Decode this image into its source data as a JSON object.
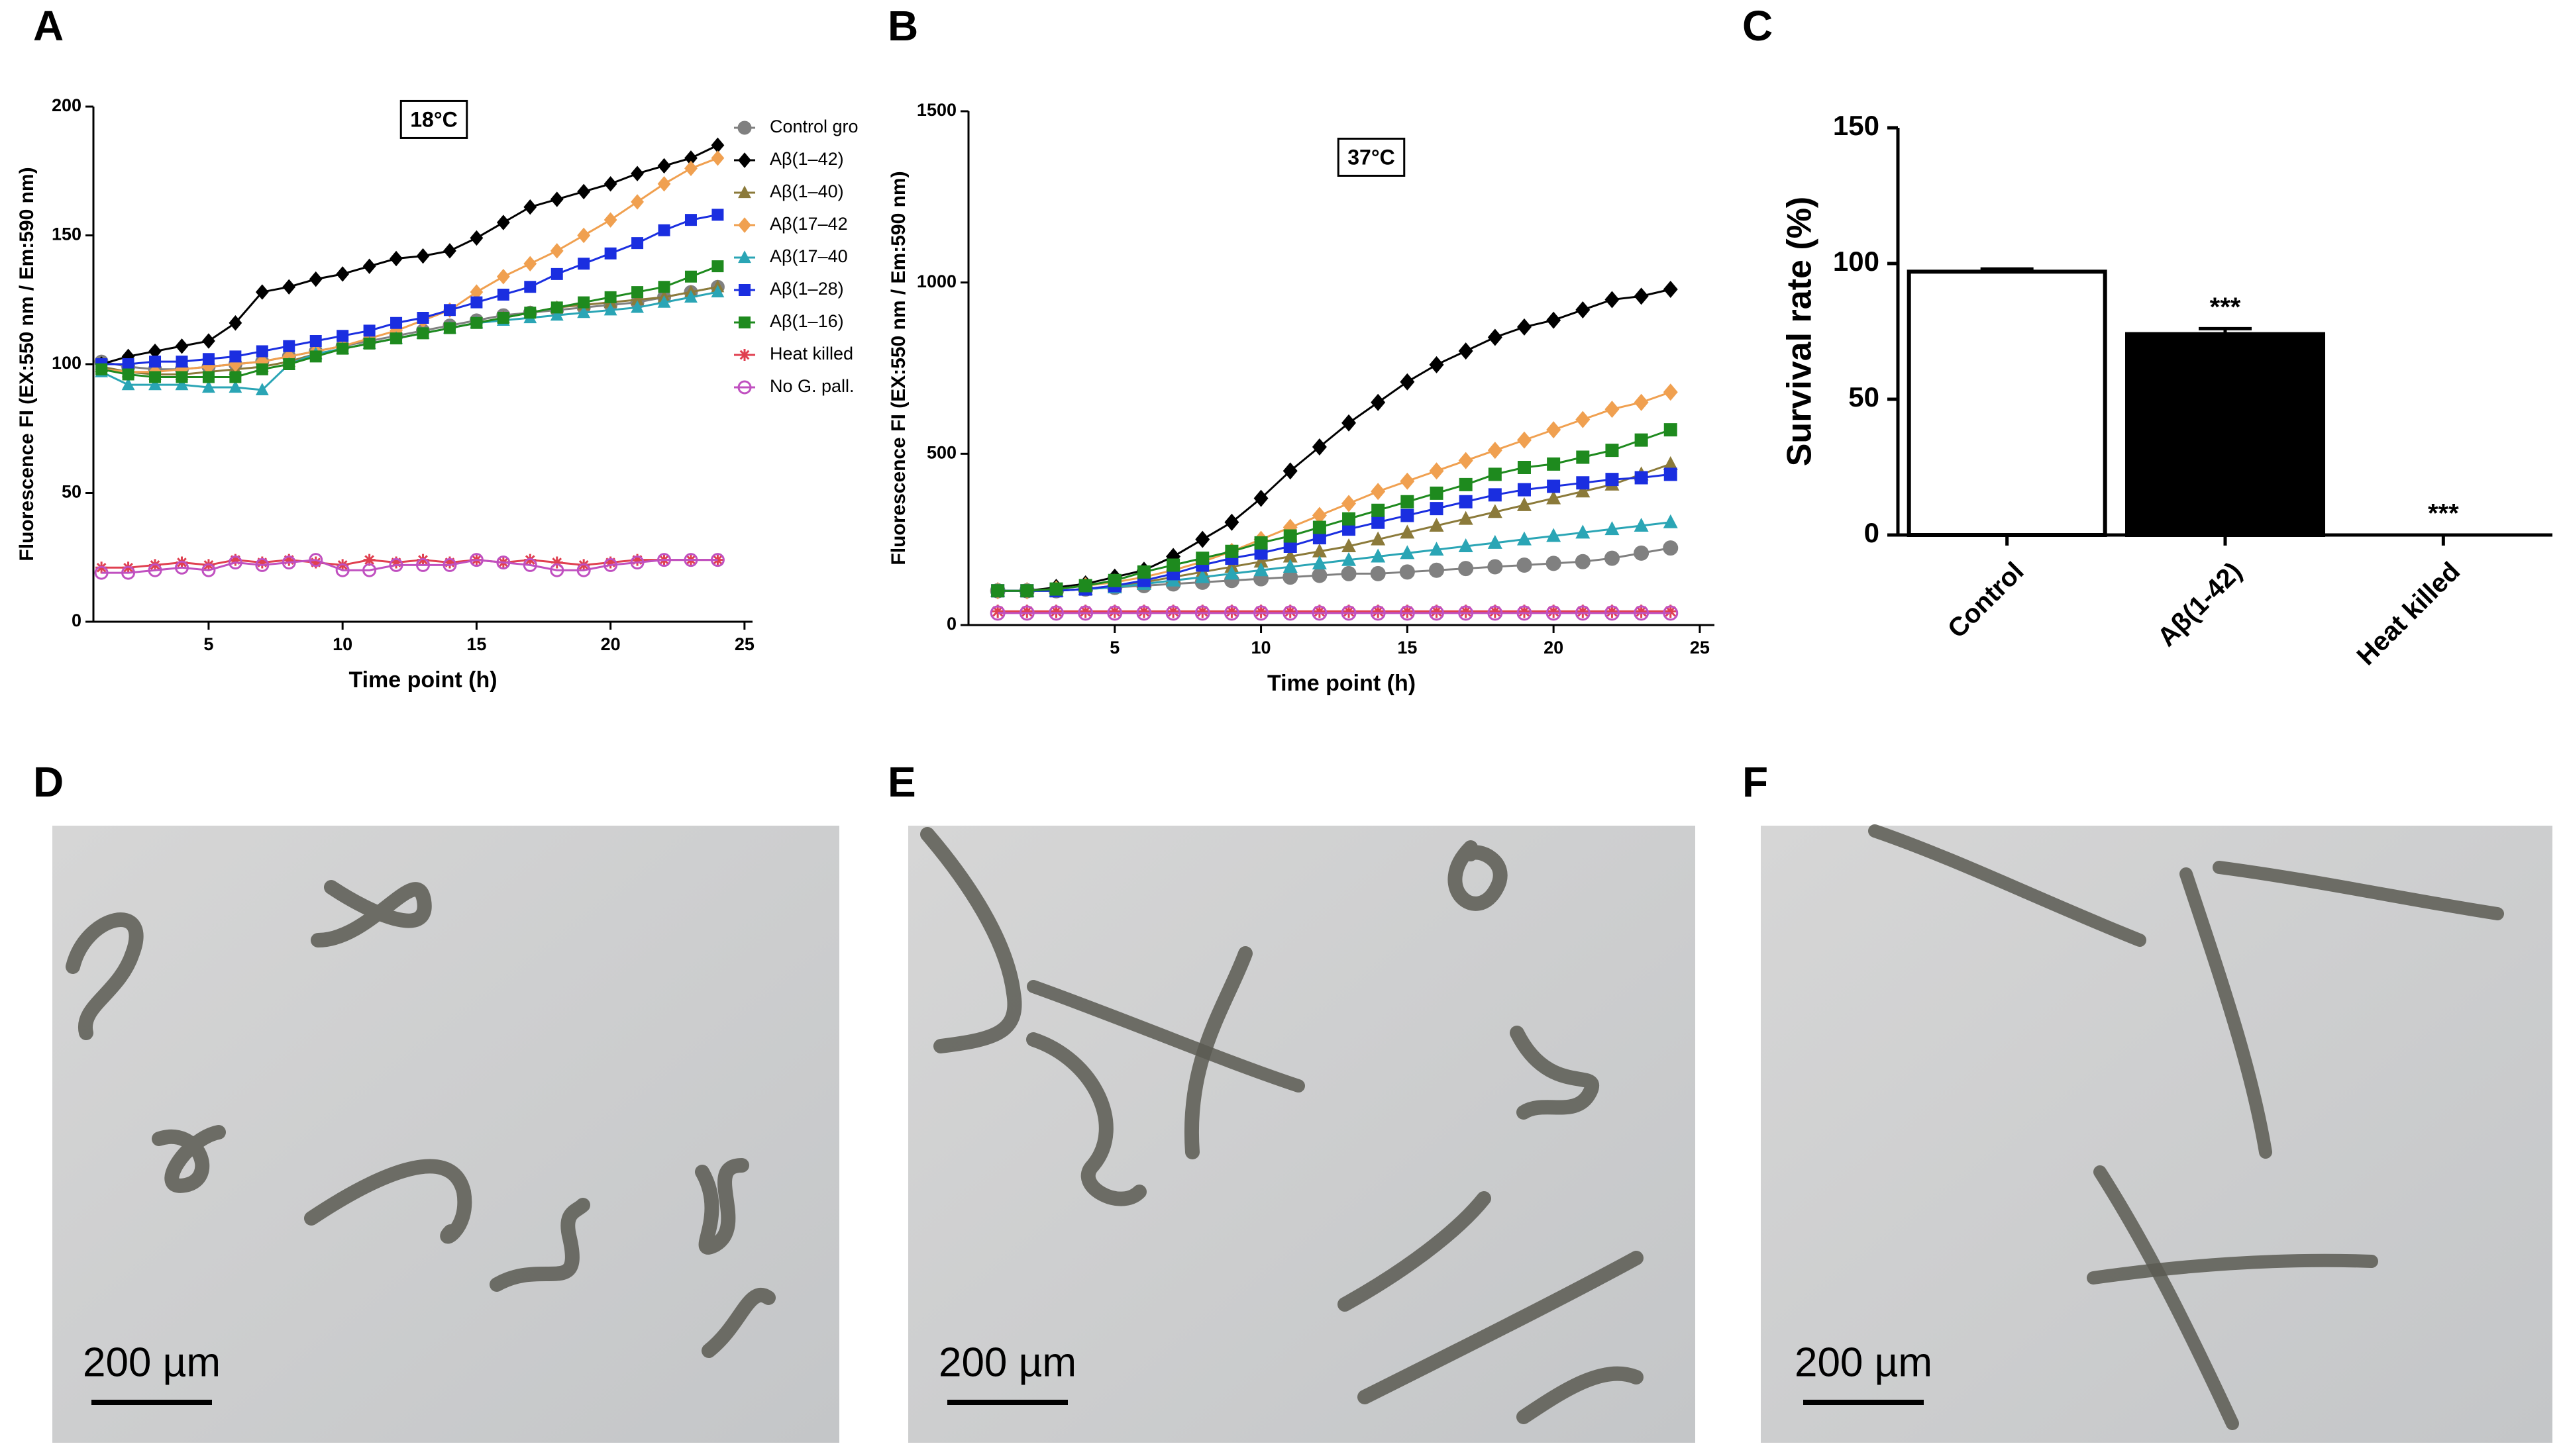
{
  "chart_data": [
    {
      "type": "line",
      "panel": "A",
      "annotation": "18°C",
      "xlabel": "Time point (h)",
      "ylabel": "Fluorescence FI (EX:550 nm / Em:590 nm)",
      "x": [
        1,
        2,
        3,
        4,
        5,
        6,
        7,
        8,
        9,
        10,
        11,
        12,
        13,
        14,
        15,
        16,
        17,
        18,
        19,
        20,
        21,
        22,
        23,
        24
      ],
      "xlim": [
        0.7,
        25.3
      ],
      "xticks": [
        5,
        10,
        15,
        20,
        25
      ],
      "ylim": [
        0,
        200
      ],
      "yticks": [
        0,
        50,
        100,
        150,
        200
      ],
      "legend": "right",
      "series": [
        {
          "name": "Control gro",
          "color": "#808080",
          "marker": "circle",
          "values": [
            101,
            99,
            98,
            98,
            99,
            100,
            101,
            103,
            105,
            107,
            109,
            111,
            113,
            115,
            117,
            119,
            120,
            121,
            122,
            123,
            124,
            126,
            128,
            130
          ]
        },
        {
          "name": "Aβ(1–42)",
          "color": "#000000",
          "marker": "diamond",
          "values": [
            100,
            103,
            105,
            107,
            109,
            116,
            128,
            130,
            133,
            135,
            138,
            141,
            142,
            144,
            149,
            155,
            161,
            164,
            167,
            170,
            174,
            177,
            180,
            185
          ]
        },
        {
          "name": "Aβ(1–40)",
          "color": "#8b7a3a",
          "marker": "triangle",
          "values": [
            99,
            97,
            96,
            96,
            97,
            98,
            99,
            101,
            104,
            106,
            108,
            110,
            112,
            114,
            116,
            118,
            120,
            122,
            123,
            124,
            125,
            126,
            128,
            130
          ]
        },
        {
          "name": "Aβ(17–42",
          "color": "#f0a050",
          "marker": "diamond",
          "values": [
            98,
            97,
            97,
            98,
            99,
            100,
            101,
            103,
            105,
            107,
            110,
            113,
            117,
            121,
            128,
            134,
            139,
            144,
            150,
            156,
            163,
            170,
            176,
            180
          ]
        },
        {
          "name": "Aβ(17–40",
          "color": "#2aa5b5",
          "marker": "triangle",
          "values": [
            97,
            92,
            92,
            92,
            91,
            91,
            90,
            100,
            104,
            106,
            108,
            110,
            112,
            114,
            116,
            117,
            118,
            119,
            120,
            121,
            122,
            124,
            126,
            128
          ]
        },
        {
          "name": "Aβ(1–28)",
          "color": "#1a2ee0",
          "marker": "square",
          "values": [
            100,
            100,
            101,
            101,
            102,
            103,
            105,
            107,
            109,
            111,
            113,
            116,
            118,
            121,
            124,
            127,
            130,
            135,
            139,
            143,
            147,
            152,
            156,
            158
          ]
        },
        {
          "name": "Aβ(1–16)",
          "color": "#1e8a1e",
          "marker": "square",
          "values": [
            98,
            96,
            95,
            95,
            95,
            95,
            98,
            100,
            103,
            106,
            108,
            110,
            112,
            114,
            116,
            118,
            120,
            122,
            124,
            126,
            128,
            130,
            134,
            138
          ]
        },
        {
          "name": "Heat killed",
          "color": "#e04050",
          "marker": "star",
          "values": [
            21,
            21,
            22,
            23,
            22,
            24,
            23,
            24,
            23,
            22,
            24,
            23,
            24,
            23,
            24,
            23,
            24,
            23,
            22,
            23,
            24,
            24,
            24,
            24
          ]
        },
        {
          "name": "No G. pall.",
          "color": "#c050c0",
          "marker": "open-circle",
          "values": [
            19,
            19,
            20,
            21,
            20,
            23,
            22,
            23,
            24,
            20,
            20,
            22,
            22,
            22,
            24,
            23,
            22,
            20,
            20,
            22,
            23,
            24,
            24,
            24
          ]
        }
      ]
    },
    {
      "type": "line",
      "panel": "B",
      "annotation": "37°C",
      "xlabel": "Time point (h)",
      "ylabel": "Fluorescence FI (EX:550 nm / Em:590 nm)",
      "x": [
        1,
        2,
        3,
        4,
        5,
        6,
        7,
        8,
        9,
        10,
        11,
        12,
        13,
        14,
        15,
        16,
        17,
        18,
        19,
        20,
        21,
        22,
        23,
        24
      ],
      "xlim": [
        0,
        25.5
      ],
      "xticks": [
        5,
        10,
        15,
        20,
        25
      ],
      "ylim": [
        0,
        1500
      ],
      "yticks": [
        0,
        500,
        1000,
        1500
      ],
      "series": [
        {
          "color": "#808080",
          "marker": "circle",
          "values": [
            100,
            100,
            100,
            105,
            110,
            115,
            120,
            125,
            130,
            135,
            140,
            145,
            150,
            150,
            155,
            160,
            165,
            170,
            175,
            180,
            185,
            195,
            210,
            225
          ]
        },
        {
          "color": "#000000",
          "marker": "diamond",
          "values": [
            100,
            100,
            110,
            120,
            140,
            160,
            200,
            250,
            300,
            370,
            450,
            520,
            590,
            650,
            710,
            760,
            800,
            840,
            870,
            890,
            920,
            950,
            960,
            980
          ]
        },
        {
          "color": "#8b7a3a",
          "marker": "triangle",
          "values": [
            100,
            100,
            100,
            105,
            115,
            125,
            140,
            155,
            170,
            185,
            200,
            215,
            230,
            250,
            270,
            290,
            310,
            330,
            350,
            370,
            390,
            410,
            440,
            470
          ]
        },
        {
          "color": "#f0a050",
          "marker": "diamond",
          "values": [
            100,
            100,
            105,
            115,
            125,
            140,
            160,
            185,
            215,
            250,
            285,
            320,
            355,
            390,
            420,
            450,
            480,
            510,
            540,
            570,
            600,
            630,
            650,
            680
          ]
        },
        {
          "color": "#2aa5b5",
          "marker": "triangle",
          "values": [
            100,
            100,
            100,
            105,
            110,
            120,
            130,
            140,
            150,
            160,
            170,
            180,
            190,
            200,
            210,
            220,
            230,
            240,
            250,
            260,
            270,
            280,
            290,
            300
          ]
        },
        {
          "color": "#1a2ee0",
          "marker": "square",
          "values": [
            100,
            100,
            100,
            105,
            115,
            130,
            150,
            175,
            195,
            210,
            230,
            255,
            280,
            300,
            320,
            340,
            360,
            380,
            395,
            405,
            415,
            425,
            430,
            440
          ]
        },
        {
          "color": "#1e8a1e",
          "marker": "square",
          "values": [
            100,
            100,
            105,
            115,
            130,
            155,
            175,
            195,
            215,
            240,
            260,
            285,
            310,
            335,
            360,
            385,
            410,
            440,
            460,
            470,
            490,
            510,
            540,
            570
          ]
        },
        {
          "color": "#e04050",
          "marker": "star",
          "values": [
            40,
            40,
            40,
            40,
            40,
            40,
            40,
            40,
            40,
            40,
            40,
            40,
            40,
            40,
            40,
            40,
            40,
            40,
            40,
            40,
            40,
            40,
            40,
            40
          ]
        },
        {
          "color": "#c050c0",
          "marker": "open-circle",
          "values": [
            35,
            35,
            35,
            35,
            35,
            35,
            35,
            35,
            35,
            35,
            35,
            35,
            35,
            35,
            35,
            35,
            35,
            35,
            35,
            35,
            35,
            35,
            35,
            35
          ]
        }
      ]
    },
    {
      "type": "bar",
      "panel": "C",
      "ylabel": "Survival rate (%)",
      "categories": [
        "Control",
        "Aβ(1-42)",
        "Heat killed"
      ],
      "values": [
        97,
        74,
        0
      ],
      "errors": [
        1,
        2,
        0
      ],
      "colors": [
        "#ffffff",
        "#000000",
        "#ffffff"
      ],
      "significance": [
        null,
        "***",
        "***"
      ],
      "ylim": [
        0,
        150
      ],
      "yticks": [
        0,
        50,
        100,
        150
      ]
    }
  ],
  "images": [
    {
      "panel": "D",
      "scale_bar": "200 µm"
    },
    {
      "panel": "E",
      "scale_bar": "200 µm"
    },
    {
      "panel": "F",
      "scale_bar": "200 µm"
    }
  ]
}
